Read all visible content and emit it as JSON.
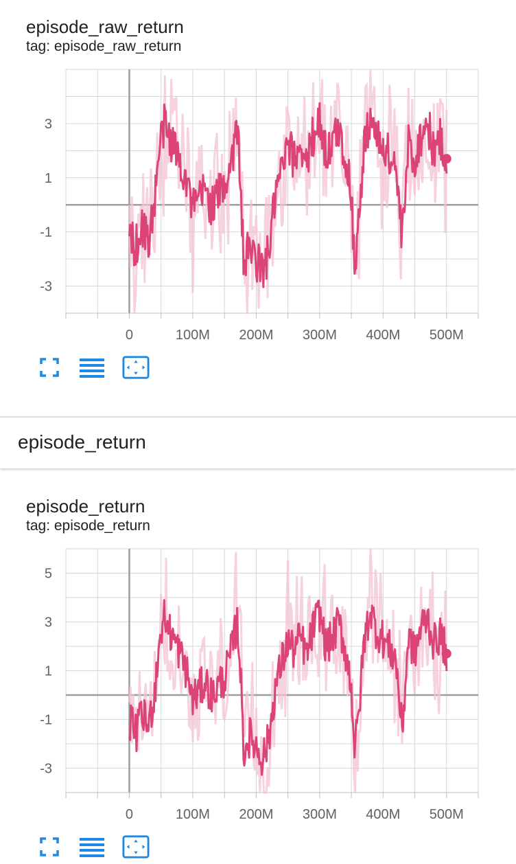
{
  "cards": [
    {
      "title": "episode_raw_return",
      "tag": "tag: episode_raw_return",
      "toolbar": [
        "fullscreen-icon",
        "list-lines-icon",
        "fit-domain-icon"
      ]
    },
    {
      "title": "episode_return",
      "tag": "tag: episode_return",
      "toolbar": [
        "fullscreen-icon",
        "list-lines-icon",
        "fit-domain-icon"
      ]
    }
  ],
  "group": {
    "title": "episode_return"
  },
  "colors": {
    "line": "#dc4377",
    "band": "#f3c2d4",
    "grid": "#d6d6d6",
    "axis": "#9e9e9e",
    "icon": "#1e88e5"
  },
  "chart_data": [
    {
      "type": "line",
      "title": "episode_raw_return",
      "xlabel": "",
      "ylabel": "",
      "x_ticks": [
        "0",
        "100M",
        "200M",
        "300M",
        "400M",
        "500M"
      ],
      "y_ticks": [
        "3",
        "1",
        "-1",
        "-3"
      ],
      "xlim": [
        -100000000,
        550000000
      ],
      "ylim": [
        -4,
        5
      ],
      "grid": true,
      "legend": "none",
      "series": [
        {
          "x": [
            0,
            10000000,
            20000000,
            30000000,
            40000000,
            45000000,
            50000000,
            55000000,
            60000000,
            70000000,
            80000000,
            90000000,
            100000000,
            110000000,
            120000000,
            130000000,
            140000000,
            150000000,
            160000000,
            170000000,
            175000000,
            180000000,
            190000000,
            200000000,
            210000000,
            220000000,
            230000000,
            240000000,
            250000000,
            260000000,
            270000000,
            280000000,
            290000000,
            300000000,
            310000000,
            320000000,
            330000000,
            340000000,
            350000000,
            355000000,
            360000000,
            370000000,
            380000000,
            390000000,
            400000000,
            410000000,
            420000000,
            430000000,
            440000000,
            450000000,
            460000000,
            470000000,
            480000000,
            490000000,
            500000000
          ],
          "values": [
            -1.0,
            -1.6,
            -0.8,
            -1.3,
            0.1,
            1.6,
            2.4,
            3.0,
            2.6,
            2.2,
            1.6,
            1.0,
            -0.2,
            0.2,
            0.6,
            -0.1,
            0.4,
            0.7,
            1.6,
            2.8,
            1.2,
            -2.2,
            -1.6,
            -2.0,
            -2.5,
            -1.7,
            0.3,
            1.2,
            2.1,
            1.7,
            2.3,
            1.5,
            2.6,
            3.1,
            1.9,
            2.2,
            2.8,
            1.8,
            0.4,
            -2.1,
            -1.2,
            2.1,
            3.3,
            2.4,
            2.2,
            1.8,
            1.4,
            -1.4,
            2.3,
            1.6,
            2.6,
            3.0,
            2.0,
            2.4,
            1.7
          ]
        }
      ]
    },
    {
      "type": "line",
      "title": "episode_return",
      "xlabel": "",
      "ylabel": "",
      "x_ticks": [
        "0",
        "100M",
        "200M",
        "300M",
        "400M",
        "500M"
      ],
      "y_ticks": [
        "5",
        "3",
        "1",
        "-1",
        "-3"
      ],
      "xlim": [
        -100000000,
        550000000
      ],
      "ylim": [
        -4,
        6
      ],
      "grid": true,
      "legend": "none",
      "series": [
        {
          "x": [
            0,
            10000000,
            20000000,
            30000000,
            40000000,
            45000000,
            50000000,
            55000000,
            60000000,
            70000000,
            80000000,
            90000000,
            100000000,
            110000000,
            120000000,
            130000000,
            140000000,
            150000000,
            160000000,
            170000000,
            175000000,
            180000000,
            190000000,
            200000000,
            210000000,
            220000000,
            230000000,
            240000000,
            250000000,
            260000000,
            270000000,
            280000000,
            290000000,
            300000000,
            310000000,
            320000000,
            330000000,
            340000000,
            350000000,
            355000000,
            360000000,
            370000000,
            380000000,
            390000000,
            400000000,
            410000000,
            420000000,
            430000000,
            440000000,
            450000000,
            460000000,
            470000000,
            480000000,
            490000000,
            500000000
          ],
          "values": [
            -1.0,
            -1.6,
            -0.8,
            -1.3,
            0.1,
            1.6,
            2.6,
            3.2,
            2.8,
            2.3,
            1.7,
            1.0,
            -0.2,
            0.2,
            0.6,
            -0.1,
            0.4,
            0.7,
            1.7,
            3.0,
            1.2,
            -2.3,
            -1.7,
            -2.1,
            -2.6,
            -1.8,
            0.3,
            1.3,
            2.2,
            1.8,
            2.4,
            1.6,
            2.8,
            3.4,
            2.0,
            2.3,
            3.0,
            1.9,
            0.4,
            -2.2,
            -1.3,
            2.2,
            3.5,
            2.6,
            2.3,
            1.9,
            1.5,
            -1.5,
            2.4,
            1.7,
            2.8,
            3.2,
            2.1,
            2.5,
            1.7
          ]
        }
      ]
    }
  ]
}
